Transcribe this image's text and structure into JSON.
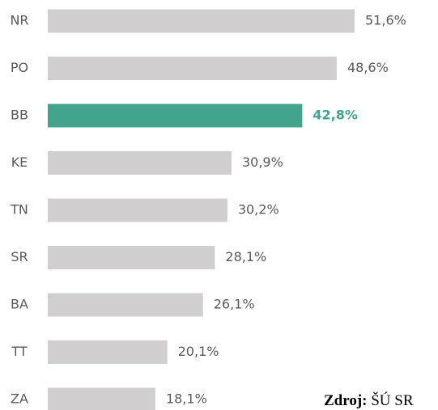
{
  "chart_data": {
    "type": "bar",
    "orientation": "horizontal",
    "categories": [
      "NR",
      "PO",
      "BB",
      "KE",
      "TN",
      "SR",
      "BA",
      "TT",
      "ZA"
    ],
    "values": [
      51.6,
      48.6,
      42.8,
      30.9,
      30.2,
      28.1,
      26.1,
      20.1,
      18.1
    ],
    "value_labels": [
      "51,6%",
      "48,6%",
      "42,8%",
      "30,9%",
      "30,2%",
      "28,1%",
      "26,1%",
      "20,1%",
      "18,1%"
    ],
    "color": "#d0cece",
    "highlight": "BB",
    "highlight_color": "#43a48e",
    "source_label": "Zdroj:",
    "source": "ŠÚ SR"
  }
}
